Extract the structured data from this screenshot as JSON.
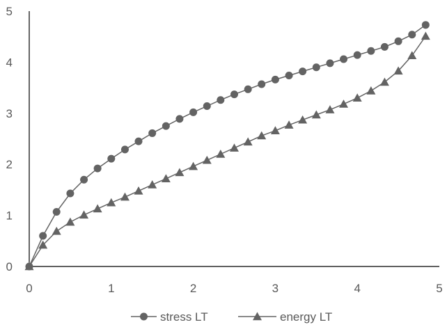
{
  "chart_data": {
    "type": "line",
    "title": "",
    "xlabel": "",
    "ylabel": "",
    "xlim": [
      0,
      5
    ],
    "ylim": [
      0,
      5
    ],
    "x_ticks": [
      "0",
      "1",
      "2",
      "3",
      "4",
      "5"
    ],
    "y_ticks": [
      "0",
      "1",
      "2",
      "3",
      "4",
      "5"
    ],
    "grid": false,
    "legend_position": "bottom",
    "series": [
      {
        "name": "stress LT",
        "marker": "circle",
        "color": "#636363",
        "x": [
          0,
          0.167,
          0.333,
          0.5,
          0.667,
          0.833,
          1.0,
          1.167,
          1.333,
          1.5,
          1.667,
          1.833,
          2.0,
          2.167,
          2.333,
          2.5,
          2.667,
          2.833,
          3.0,
          3.167,
          3.333,
          3.5,
          3.667,
          3.833,
          4.0,
          4.167,
          4.333,
          4.5,
          4.667,
          4.833
        ],
        "y": [
          0,
          0.6,
          1.07,
          1.43,
          1.7,
          1.92,
          2.11,
          2.29,
          2.45,
          2.61,
          2.75,
          2.89,
          3.02,
          3.14,
          3.26,
          3.37,
          3.47,
          3.57,
          3.66,
          3.74,
          3.82,
          3.9,
          3.98,
          4.06,
          4.14,
          4.22,
          4.3,
          4.41,
          4.54,
          4.73
        ]
      },
      {
        "name": "energy LT",
        "marker": "triangle",
        "color": "#636363",
        "x": [
          0,
          0.167,
          0.333,
          0.5,
          0.667,
          0.833,
          1.0,
          1.167,
          1.333,
          1.5,
          1.667,
          1.833,
          2.0,
          2.167,
          2.333,
          2.5,
          2.667,
          2.833,
          3.0,
          3.167,
          3.333,
          3.5,
          3.667,
          3.833,
          4.0,
          4.167,
          4.333,
          4.5,
          4.667,
          4.833
        ],
        "y": [
          0,
          0.42,
          0.69,
          0.87,
          1.01,
          1.13,
          1.25,
          1.36,
          1.48,
          1.6,
          1.72,
          1.84,
          1.96,
          2.08,
          2.2,
          2.32,
          2.44,
          2.56,
          2.66,
          2.77,
          2.87,
          2.97,
          3.07,
          3.18,
          3.3,
          3.44,
          3.61,
          3.83,
          4.13,
          4.51
        ]
      }
    ]
  }
}
